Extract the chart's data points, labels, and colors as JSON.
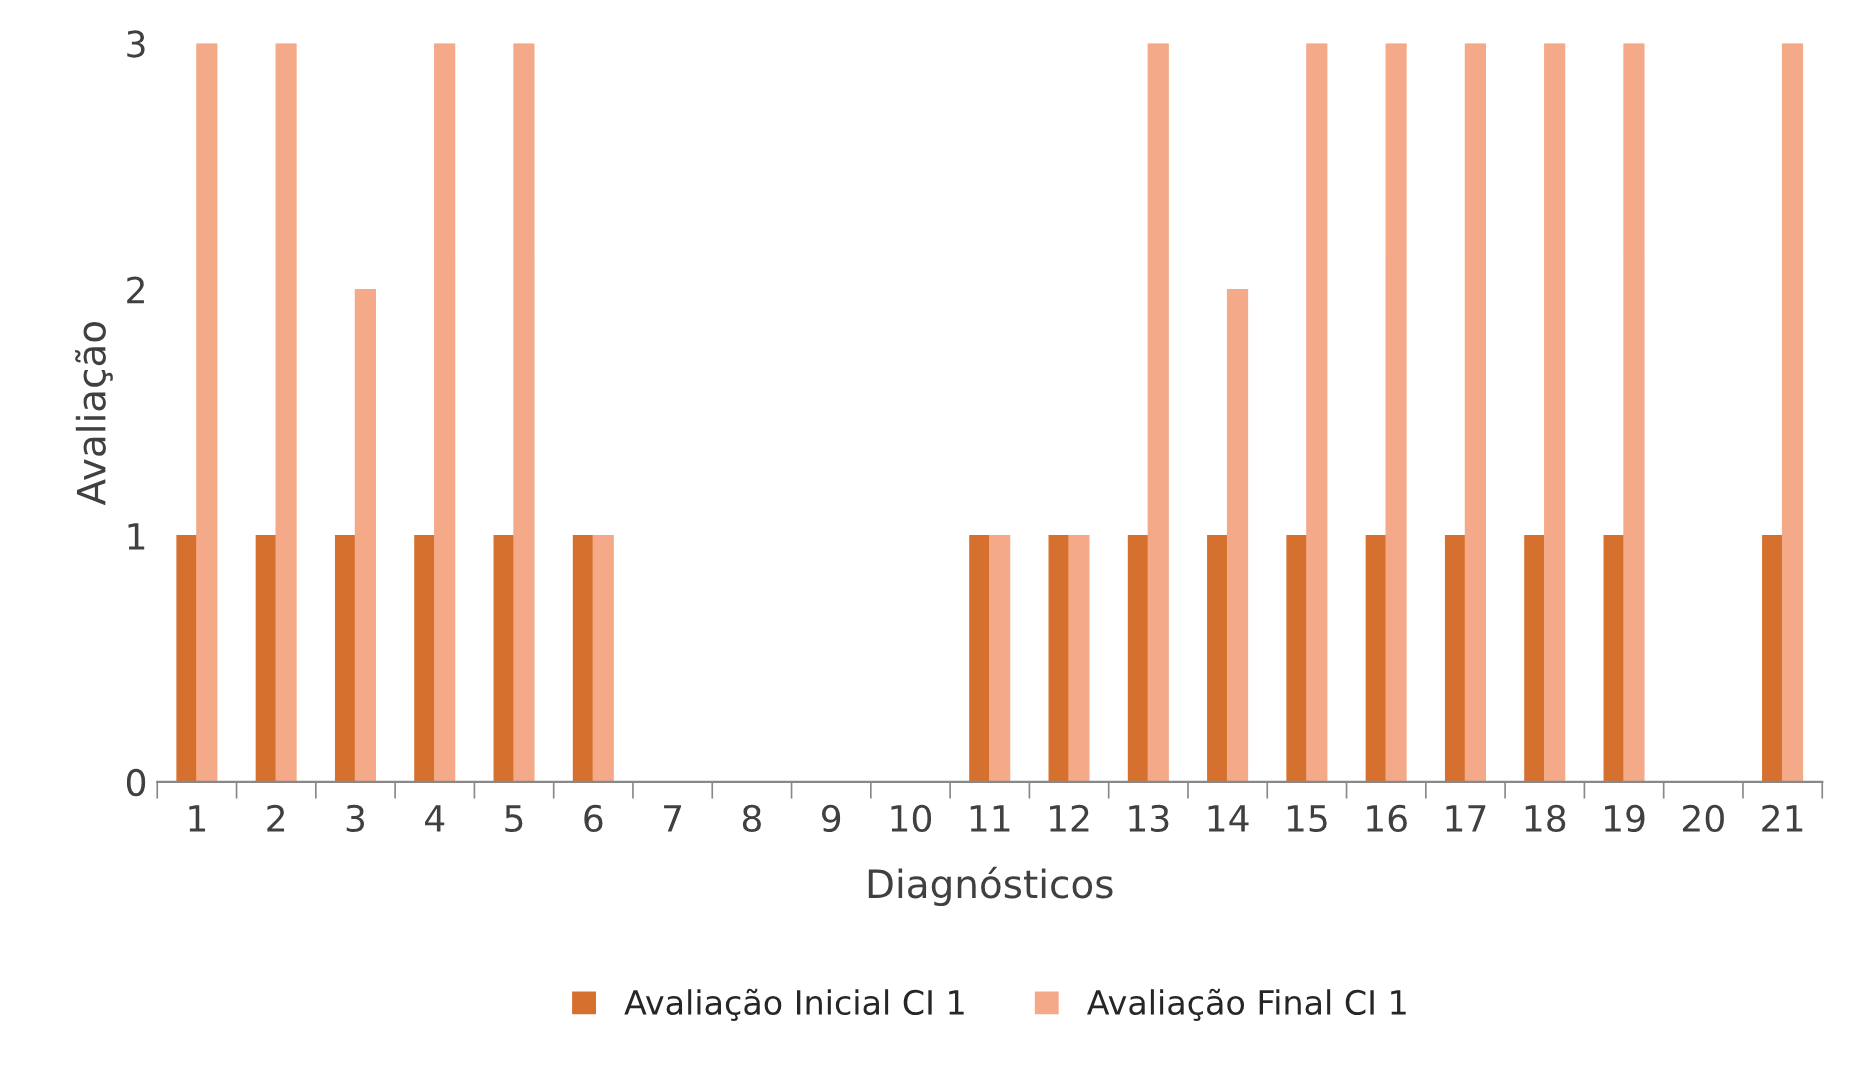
{
  "chart_data": {
    "type": "bar",
    "xlabel": "Diagnósticos",
    "ylabel": "Avaliação",
    "categories": [
      "1",
      "2",
      "3",
      "4",
      "5",
      "6",
      "7",
      "8",
      "9",
      "10",
      "11",
      "12",
      "13",
      "14",
      "15",
      "16",
      "17",
      "18",
      "19",
      "20",
      "21"
    ],
    "series": [
      {
        "name": "Avaliação Inicial CI 1",
        "color": "#d5702e",
        "values": [
          1,
          1,
          1,
          1,
          1,
          1,
          0,
          0,
          0,
          0,
          1,
          1,
          1,
          1,
          1,
          1,
          1,
          1,
          1,
          0,
          1
        ]
      },
      {
        "name": "Avaliação Final CI 1",
        "color": "#f4aa88",
        "values": [
          3,
          3,
          2,
          3,
          3,
          1,
          0,
          0,
          0,
          0,
          1,
          1,
          3,
          2,
          3,
          3,
          3,
          3,
          3,
          0,
          3
        ]
      }
    ],
    "ylim": [
      0,
      3
    ],
    "yticks": [
      0,
      1,
      2,
      3
    ],
    "grid": false,
    "legend": "bottom"
  }
}
